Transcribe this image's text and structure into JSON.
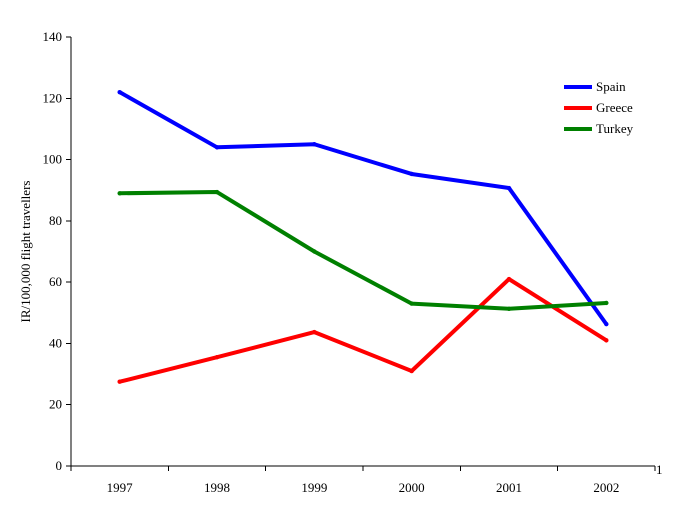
{
  "chart_data": {
    "type": "line",
    "title": "",
    "xlabel": "",
    "ylabel": "IR/100,000 flight travellers",
    "categories": [
      "1997",
      "1998",
      "1999",
      "2000",
      "2001",
      "2002"
    ],
    "ylim": [
      0,
      140
    ],
    "yticks": [
      0,
      20,
      40,
      60,
      80,
      100,
      120,
      140
    ],
    "grid": false,
    "legend_position": "top-right",
    "annotations": [
      "1"
    ],
    "series": [
      {
        "name": "Spain",
        "color": "#0000FF",
        "values": [
          122,
          104,
          105,
          95.3,
          90.7,
          46.3
        ]
      },
      {
        "name": "Greece",
        "color": "#FF0000",
        "values": [
          27.5,
          35.5,
          43.7,
          31,
          61,
          41
        ]
      },
      {
        "name": "Turkey",
        "color": "#008000",
        "values": [
          89,
          89.4,
          70,
          53,
          51.3,
          53.2
        ]
      }
    ]
  }
}
